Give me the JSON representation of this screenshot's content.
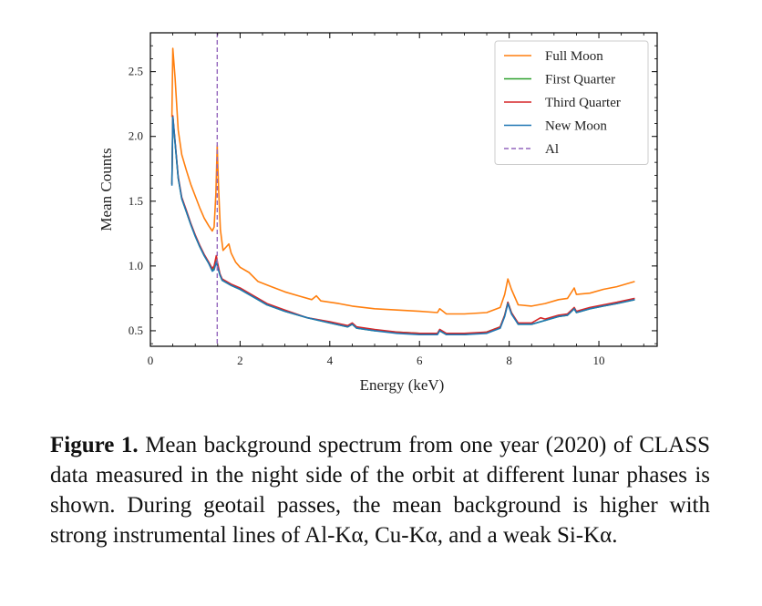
{
  "chart_data": {
    "type": "line",
    "xlabel": "Energy (keV)",
    "ylabel": "Mean Counts",
    "xlim": [
      0,
      11.3
    ],
    "ylim": [
      0.38,
      2.8
    ],
    "xticks": [
      0,
      2,
      4,
      6,
      8,
      10
    ],
    "yticks": [
      0.5,
      1.0,
      1.5,
      2.0,
      2.5
    ],
    "ytick_labels": [
      "0.5",
      "1.0",
      "1.5",
      "2.0",
      "2.5"
    ],
    "grid": false,
    "legend_position": "top-right",
    "vline": {
      "name": "Al",
      "x": 1.49,
      "color": "#9467bd",
      "style": "dashed"
    },
    "series": [
      {
        "name": "Full Moon",
        "color": "#ff7f0e",
        "points": [
          [
            0.48,
            2.15
          ],
          [
            0.5,
            2.68
          ],
          [
            0.55,
            2.45
          ],
          [
            0.62,
            2.05
          ],
          [
            0.7,
            1.86
          ],
          [
            0.8,
            1.74
          ],
          [
            0.9,
            1.63
          ],
          [
            1.0,
            1.54
          ],
          [
            1.1,
            1.45
          ],
          [
            1.2,
            1.37
          ],
          [
            1.3,
            1.31
          ],
          [
            1.38,
            1.27
          ],
          [
            1.42,
            1.3
          ],
          [
            1.46,
            1.55
          ],
          [
            1.49,
            1.93
          ],
          [
            1.52,
            1.6
          ],
          [
            1.56,
            1.28
          ],
          [
            1.62,
            1.12
          ],
          [
            1.7,
            1.15
          ],
          [
            1.75,
            1.17
          ],
          [
            1.8,
            1.1
          ],
          [
            1.9,
            1.03
          ],
          [
            2.0,
            0.99
          ],
          [
            2.2,
            0.95
          ],
          [
            2.4,
            0.88
          ],
          [
            2.7,
            0.84
          ],
          [
            3.0,
            0.8
          ],
          [
            3.3,
            0.77
          ],
          [
            3.6,
            0.74
          ],
          [
            3.7,
            0.77
          ],
          [
            3.8,
            0.73
          ],
          [
            4.2,
            0.71
          ],
          [
            4.5,
            0.69
          ],
          [
            5.0,
            0.67
          ],
          [
            5.5,
            0.66
          ],
          [
            6.0,
            0.65
          ],
          [
            6.4,
            0.64
          ],
          [
            6.45,
            0.67
          ],
          [
            6.6,
            0.63
          ],
          [
            7.0,
            0.63
          ],
          [
            7.5,
            0.64
          ],
          [
            7.8,
            0.68
          ],
          [
            7.9,
            0.78
          ],
          [
            7.97,
            0.9
          ],
          [
            8.05,
            0.82
          ],
          [
            8.2,
            0.7
          ],
          [
            8.5,
            0.69
          ],
          [
            8.8,
            0.71
          ],
          [
            9.1,
            0.74
          ],
          [
            9.3,
            0.75
          ],
          [
            9.45,
            0.83
          ],
          [
            9.5,
            0.78
          ],
          [
            9.8,
            0.79
          ],
          [
            10.1,
            0.82
          ],
          [
            10.4,
            0.84
          ],
          [
            10.8,
            0.88
          ]
        ]
      },
      {
        "name": "First Quarter",
        "color": "#2ca02c",
        "points": [
          [
            0.48,
            1.63
          ],
          [
            0.5,
            2.15
          ],
          [
            0.55,
            1.95
          ],
          [
            0.62,
            1.68
          ],
          [
            0.7,
            1.52
          ],
          [
            0.8,
            1.42
          ],
          [
            0.9,
            1.32
          ],
          [
            1.0,
            1.23
          ],
          [
            1.1,
            1.15
          ],
          [
            1.2,
            1.08
          ],
          [
            1.3,
            1.02
          ],
          [
            1.38,
            0.97
          ],
          [
            1.42,
            0.98
          ],
          [
            1.47,
            1.04
          ],
          [
            1.5,
            1.0
          ],
          [
            1.55,
            0.93
          ],
          [
            1.6,
            0.89
          ],
          [
            1.8,
            0.85
          ],
          [
            2.0,
            0.82
          ],
          [
            2.3,
            0.76
          ],
          [
            2.6,
            0.7
          ],
          [
            3.0,
            0.65
          ],
          [
            3.5,
            0.6
          ],
          [
            4.0,
            0.56
          ],
          [
            4.4,
            0.53
          ],
          [
            4.5,
            0.55
          ],
          [
            4.6,
            0.52
          ],
          [
            5.0,
            0.5
          ],
          [
            5.5,
            0.49
          ],
          [
            6.0,
            0.48
          ],
          [
            6.4,
            0.48
          ],
          [
            6.45,
            0.5
          ],
          [
            6.6,
            0.47
          ],
          [
            7.0,
            0.47
          ],
          [
            7.5,
            0.49
          ],
          [
            7.8,
            0.53
          ],
          [
            7.9,
            0.62
          ],
          [
            7.97,
            0.72
          ],
          [
            8.05,
            0.64
          ],
          [
            8.2,
            0.55
          ],
          [
            8.5,
            0.55
          ],
          [
            8.8,
            0.58
          ],
          [
            9.1,
            0.61
          ],
          [
            9.3,
            0.62
          ],
          [
            9.45,
            0.67
          ],
          [
            9.5,
            0.64
          ],
          [
            9.8,
            0.67
          ],
          [
            10.1,
            0.69
          ],
          [
            10.4,
            0.71
          ],
          [
            10.8,
            0.74
          ]
        ]
      },
      {
        "name": "Third Quarter",
        "color": "#d62728",
        "points": [
          [
            0.48,
            1.63
          ],
          [
            0.5,
            2.16
          ],
          [
            0.55,
            1.96
          ],
          [
            0.62,
            1.69
          ],
          [
            0.7,
            1.53
          ],
          [
            0.8,
            1.43
          ],
          [
            0.9,
            1.33
          ],
          [
            1.0,
            1.24
          ],
          [
            1.1,
            1.16
          ],
          [
            1.2,
            1.09
          ],
          [
            1.3,
            1.03
          ],
          [
            1.38,
            0.98
          ],
          [
            1.42,
            1.0
          ],
          [
            1.47,
            1.08
          ],
          [
            1.5,
            1.02
          ],
          [
            1.55,
            0.94
          ],
          [
            1.6,
            0.9
          ],
          [
            1.8,
            0.86
          ],
          [
            2.0,
            0.83
          ],
          [
            2.3,
            0.77
          ],
          [
            2.6,
            0.71
          ],
          [
            3.0,
            0.66
          ],
          [
            3.5,
            0.6
          ],
          [
            4.0,
            0.57
          ],
          [
            4.4,
            0.54
          ],
          [
            4.5,
            0.56
          ],
          [
            4.6,
            0.53
          ],
          [
            5.0,
            0.51
          ],
          [
            5.5,
            0.49
          ],
          [
            6.0,
            0.48
          ],
          [
            6.4,
            0.48
          ],
          [
            6.45,
            0.51
          ],
          [
            6.6,
            0.48
          ],
          [
            7.0,
            0.48
          ],
          [
            7.5,
            0.49
          ],
          [
            7.8,
            0.53
          ],
          [
            7.9,
            0.62
          ],
          [
            7.97,
            0.72
          ],
          [
            8.05,
            0.64
          ],
          [
            8.2,
            0.56
          ],
          [
            8.5,
            0.56
          ],
          [
            8.7,
            0.6
          ],
          [
            8.8,
            0.59
          ],
          [
            9.1,
            0.62
          ],
          [
            9.3,
            0.63
          ],
          [
            9.45,
            0.68
          ],
          [
            9.5,
            0.65
          ],
          [
            9.8,
            0.68
          ],
          [
            10.1,
            0.7
          ],
          [
            10.4,
            0.72
          ],
          [
            10.8,
            0.75
          ]
        ]
      },
      {
        "name": "New Moon",
        "color": "#1f77b4",
        "points": [
          [
            0.48,
            1.62
          ],
          [
            0.5,
            2.15
          ],
          [
            0.55,
            1.95
          ],
          [
            0.62,
            1.68
          ],
          [
            0.7,
            1.52
          ],
          [
            0.8,
            1.42
          ],
          [
            0.9,
            1.32
          ],
          [
            1.0,
            1.23
          ],
          [
            1.1,
            1.15
          ],
          [
            1.2,
            1.08
          ],
          [
            1.3,
            1.02
          ],
          [
            1.38,
            0.96
          ],
          [
            1.42,
            0.97
          ],
          [
            1.47,
            1.03
          ],
          [
            1.5,
            0.99
          ],
          [
            1.55,
            0.93
          ],
          [
            1.6,
            0.89
          ],
          [
            1.8,
            0.85
          ],
          [
            2.0,
            0.82
          ],
          [
            2.3,
            0.76
          ],
          [
            2.6,
            0.7
          ],
          [
            3.0,
            0.65
          ],
          [
            3.5,
            0.6
          ],
          [
            4.0,
            0.56
          ],
          [
            4.4,
            0.53
          ],
          [
            4.5,
            0.55
          ],
          [
            4.6,
            0.52
          ],
          [
            5.0,
            0.5
          ],
          [
            5.5,
            0.48
          ],
          [
            6.0,
            0.47
          ],
          [
            6.4,
            0.47
          ],
          [
            6.45,
            0.5
          ],
          [
            6.6,
            0.47
          ],
          [
            7.0,
            0.47
          ],
          [
            7.5,
            0.48
          ],
          [
            7.8,
            0.52
          ],
          [
            7.9,
            0.61
          ],
          [
            7.97,
            0.71
          ],
          [
            8.05,
            0.63
          ],
          [
            8.2,
            0.55
          ],
          [
            8.5,
            0.55
          ],
          [
            8.8,
            0.58
          ],
          [
            9.1,
            0.61
          ],
          [
            9.3,
            0.62
          ],
          [
            9.45,
            0.67
          ],
          [
            9.5,
            0.64
          ],
          [
            9.8,
            0.67
          ],
          [
            10.1,
            0.69
          ],
          [
            10.4,
            0.71
          ],
          [
            10.8,
            0.74
          ]
        ]
      }
    ]
  },
  "caption": {
    "label": "Figure 1.",
    "text": "Mean background spectrum from one year (2020) of CLASS data measured in the night side of the orbit at different lunar phases is shown. During geotail passes, the mean background is higher with strong instrumental lines of Al-Kα, Cu-Kα, and a weak Si-Kα."
  }
}
